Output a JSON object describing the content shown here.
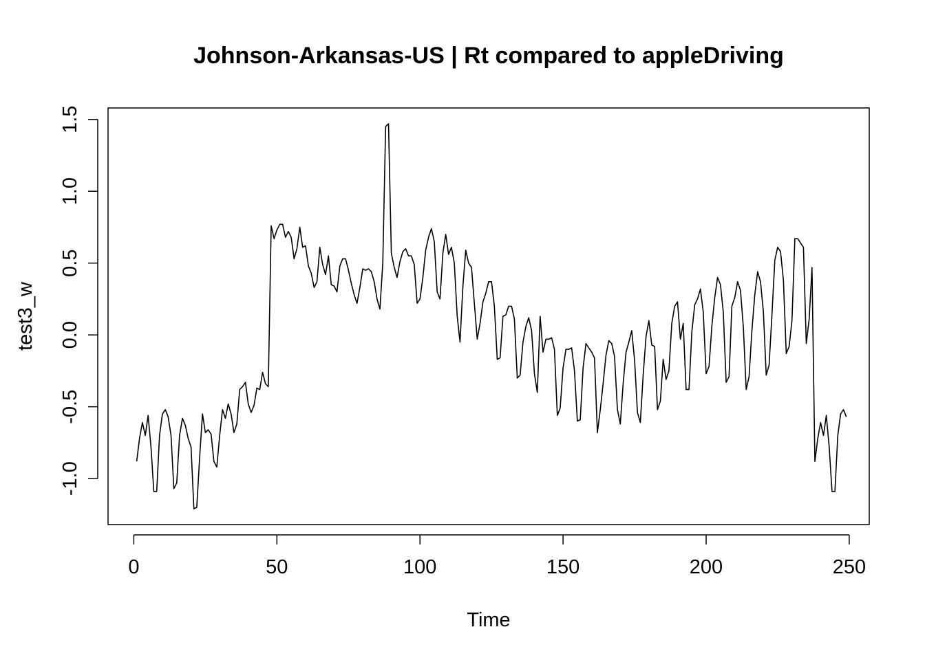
{
  "chart_data": {
    "type": "line",
    "title": "Johnson-Arkansas-US | Rt compared to appleDriving",
    "xlabel": "Time",
    "ylabel": "test3_w",
    "xlim": [
      -9,
      257
    ],
    "ylim": [
      -1.32,
      1.58
    ],
    "x_ticks": [
      0,
      50,
      100,
      150,
      200,
      250
    ],
    "y_ticks": [
      -1.0,
      -0.5,
      0.0,
      0.5,
      1.0,
      1.5
    ],
    "x_tick_labels": [
      "0",
      "50",
      "100",
      "150",
      "200",
      "250"
    ],
    "y_tick_labels": [
      "-1.0",
      "-0.5",
      "0.0",
      "0.5",
      "1.0",
      "1.5"
    ],
    "grid": false,
    "series": [
      {
        "color": "#000000",
        "x_start": 1,
        "values": [
          -0.88,
          -0.72,
          -0.61,
          -0.7,
          -0.56,
          -0.78,
          -1.09,
          -1.09,
          -0.7,
          -0.55,
          -0.52,
          -0.57,
          -0.7,
          -1.07,
          -1.03,
          -0.7,
          -0.58,
          -0.63,
          -0.72,
          -0.78,
          -1.21,
          -1.2,
          -0.85,
          -0.55,
          -0.68,
          -0.66,
          -0.69,
          -0.88,
          -0.92,
          -0.7,
          -0.52,
          -0.58,
          -0.48,
          -0.55,
          -0.68,
          -0.62,
          -0.38,
          -0.36,
          -0.33,
          -0.48,
          -0.54,
          -0.49,
          -0.37,
          -0.38,
          -0.26,
          -0.34,
          -0.36,
          0.76,
          0.67,
          0.73,
          0.77,
          0.77,
          0.68,
          0.72,
          0.68,
          0.53,
          0.6,
          0.75,
          0.61,
          0.62,
          0.48,
          0.43,
          0.33,
          0.37,
          0.61,
          0.49,
          0.42,
          0.55,
          0.35,
          0.34,
          0.3,
          0.48,
          0.53,
          0.53,
          0.45,
          0.36,
          0.28,
          0.22,
          0.33,
          0.46,
          0.45,
          0.46,
          0.44,
          0.37,
          0.25,
          0.18,
          0.5,
          1.45,
          1.47,
          0.57,
          0.47,
          0.4,
          0.51,
          0.58,
          0.6,
          0.55,
          0.55,
          0.49,
          0.22,
          0.25,
          0.4,
          0.59,
          0.68,
          0.74,
          0.65,
          0.3,
          0.25,
          0.57,
          0.7,
          0.56,
          0.61,
          0.5,
          0.13,
          -0.05,
          0.34,
          0.59,
          0.5,
          0.47,
          0.22,
          -0.03,
          0.08,
          0.23,
          0.29,
          0.37,
          0.37,
          0.2,
          -0.17,
          -0.16,
          0.13,
          0.14,
          0.2,
          0.2,
          0.11,
          -0.3,
          -0.28,
          -0.05,
          0.06,
          0.12,
          0.03,
          -0.27,
          -0.4,
          0.13,
          -0.12,
          -0.03,
          -0.03,
          -0.02,
          -0.1,
          -0.56,
          -0.51,
          -0.23,
          -0.1,
          -0.1,
          -0.09,
          -0.25,
          -0.6,
          -0.59,
          -0.23,
          -0.06,
          -0.09,
          -0.12,
          -0.16,
          -0.68,
          -0.52,
          -0.34,
          -0.14,
          -0.04,
          -0.06,
          -0.15,
          -0.52,
          -0.62,
          -0.34,
          -0.12,
          -0.05,
          0.03,
          -0.18,
          -0.54,
          -0.61,
          -0.28,
          -0.01,
          0.1,
          -0.07,
          -0.08,
          -0.52,
          -0.46,
          -0.17,
          -0.31,
          -0.25,
          0.08,
          0.2,
          0.23,
          -0.03,
          0.08,
          -0.38,
          -0.38,
          0.02,
          0.21,
          0.25,
          0.32,
          0.16,
          -0.27,
          -0.22,
          0.06,
          0.26,
          0.4,
          0.35,
          0.16,
          -0.33,
          -0.29,
          0.2,
          0.26,
          0.37,
          0.31,
          0.05,
          -0.38,
          -0.29,
          0.03,
          0.28,
          0.44,
          0.37,
          0.16,
          -0.28,
          -0.21,
          0.14,
          0.52,
          0.61,
          0.58,
          0.38,
          -0.13,
          -0.08,
          0.1,
          0.67,
          0.67,
          0.64,
          0.61,
          -0.06,
          0.11,
          0.47,
          -0.88,
          -0.72,
          -0.61,
          -0.7,
          -0.56,
          -0.78,
          -1.09,
          -1.09,
          -0.7,
          -0.55,
          -0.52,
          -0.57
        ]
      }
    ]
  }
}
